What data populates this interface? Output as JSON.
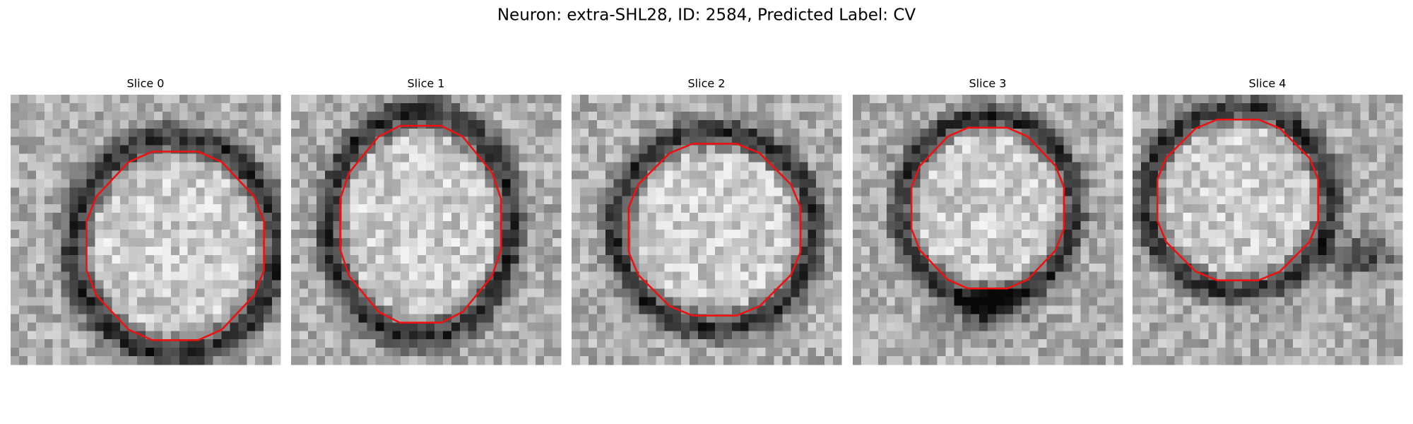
{
  "figure": {
    "title": "Neuron: extra-SHL28, ID: 2584, Predicted Label: CV",
    "panels": [
      {
        "title": "Slice 0"
      },
      {
        "title": "Slice 1"
      },
      {
        "title": "Slice 2"
      },
      {
        "title": "Slice 3"
      },
      {
        "title": "Slice 4"
      }
    ]
  }
}
